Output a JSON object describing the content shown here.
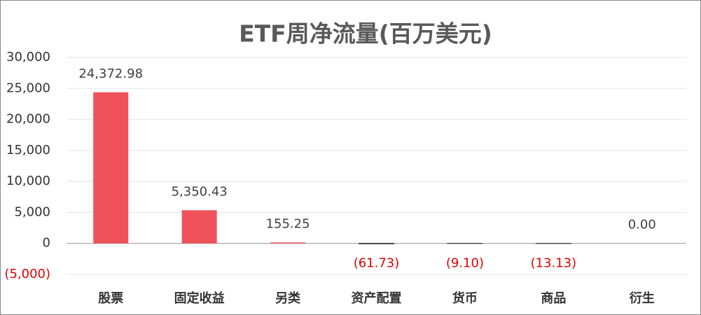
{
  "chart_data": {
    "type": "bar",
    "title": "ETF周净流量(百万美元)",
    "categories": [
      "股票",
      "固定收益",
      "另类",
      "资产配置",
      "货币",
      "商品",
      "衍生"
    ],
    "values": [
      24372.98,
      5350.43,
      155.25,
      -61.73,
      -9.1,
      -13.13,
      0.0
    ],
    "value_labels": [
      "24,372.98",
      "5,350.43",
      "155.25",
      "(61.73)",
      "(9.10)",
      "(13.13)",
      "0.00"
    ],
    "color": "#f0525b",
    "negative_color": "#222222",
    "negative_label_color": "#e00000",
    "ylim": [
      -5000,
      30000
    ],
    "yticks": [
      {
        "value": -5000,
        "label": "(5,000)"
      },
      0,
      {
        "value": 5000,
        "label": "5,000"
      },
      {
        "value": 10000,
        "label": "10,000"
      },
      {
        "value": 15000,
        "label": "15,000"
      },
      {
        "value": 20000,
        "label": "20,000"
      },
      {
        "value": 25000,
        "label": "25,000"
      },
      {
        "value": 30000,
        "label": "30,000"
      }
    ],
    "grid": true
  }
}
